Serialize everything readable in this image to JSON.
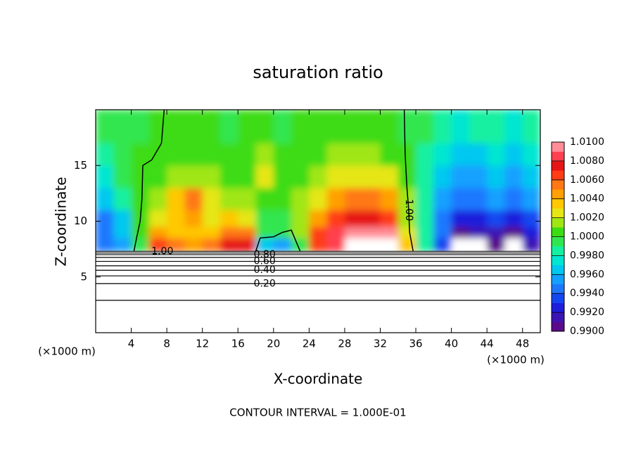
{
  "chart_data": {
    "type": "heatmap",
    "title": "saturation ratio",
    "xlabel": "X-coordinate",
    "ylabel": "Z-coordinate",
    "x_unit_left": "(×1000 m)",
    "x_unit_right": "(×1000 m)",
    "footer": "CONTOUR INTERVAL = 1.000E-01",
    "xlim": [
      0,
      50
    ],
    "ylim": [
      0,
      20
    ],
    "xticks": [
      4,
      8,
      12,
      16,
      20,
      24,
      28,
      32,
      36,
      40,
      44,
      48
    ],
    "yticks": [
      5,
      10,
      15
    ],
    "x_bins": [
      0,
      2,
      4,
      6,
      8,
      10,
      12,
      14,
      16,
      18,
      20,
      22,
      24,
      26,
      28,
      30,
      32,
      34,
      36,
      38,
      40,
      42,
      44,
      46,
      48,
      50
    ],
    "y_bins": [
      7.3,
      8.5,
      9.5,
      11,
      13,
      15,
      17,
      20
    ],
    "z": [
      [
        0.994,
        0.995,
        0.999,
        1.006,
        1.005,
        1.004,
        1.005,
        1.007,
        1.007,
        0.996,
        0.995,
        0.999,
        1.006,
        1.008,
        1.011,
        1.011,
        1.011,
        1.003,
        0.998,
        0.993,
        0.989,
        0.989,
        0.99,
        0.989,
        0.991
      ],
      [
        0.994,
        0.996,
        1.0,
        1.004,
        1.003,
        1.003,
        1.003,
        1.005,
        1.005,
        0.999,
        0.999,
        1.001,
        1.006,
        1.008,
        1.009,
        1.009,
        1.009,
        1.002,
        0.998,
        0.994,
        0.99,
        0.991,
        0.991,
        0.99,
        0.992
      ],
      [
        0.994,
        0.996,
        1.0,
        1.002,
        1.003,
        1.004,
        1.002,
        1.003,
        1.002,
        0.999,
        0.999,
        1.001,
        1.004,
        1.006,
        1.007,
        1.007,
        1.006,
        1.001,
        0.998,
        0.994,
        0.992,
        0.992,
        0.993,
        0.992,
        0.993
      ],
      [
        0.996,
        0.998,
        1.0,
        1.001,
        1.003,
        1.005,
        1.002,
        1.001,
        1.001,
        1.0,
        1.0,
        1.001,
        1.002,
        1.004,
        1.005,
        1.005,
        1.004,
        1.001,
        0.998,
        0.995,
        0.994,
        0.994,
        0.995,
        0.994,
        0.995
      ],
      [
        0.997,
        0.999,
        1.0,
        1.0,
        1.001,
        1.001,
        1.001,
        1.0,
        1.0,
        1.002,
        1.0,
        1.0,
        1.001,
        1.002,
        1.002,
        1.002,
        1.002,
        1.0,
        0.998,
        0.996,
        0.995,
        0.995,
        0.996,
        0.995,
        0.996
      ],
      [
        0.998,
        0.999,
        1.0,
        1.0,
        1.0,
        1.0,
        1.0,
        1.0,
        1.0,
        1.001,
        1.0,
        1.0,
        1.0,
        1.001,
        1.001,
        1.001,
        1.0,
        1.0,
        0.998,
        0.997,
        0.996,
        0.996,
        0.997,
        0.996,
        0.997
      ],
      [
        0.999,
        0.999,
        0.999,
        1.0,
        1.0,
        1.0,
        1.0,
        0.999,
        1.0,
        1.0,
        0.999,
        1.0,
        1.0,
        1.0,
        1.0,
        1.0,
        1.0,
        0.999,
        0.999,
        0.998,
        0.997,
        0.998,
        0.998,
        0.997,
        0.998
      ]
    ],
    "clim": [
      0.99,
      1.01
    ],
    "colorscale": [
      "#5a0a8a",
      "#3c14b4",
      "#1e1edc",
      "#1446f0",
      "#1e78ff",
      "#14a0ff",
      "#00c8f0",
      "#00e6d2",
      "#14f0a0",
      "#32e650",
      "#3cdc14",
      "#a0e614",
      "#e6e614",
      "#ffc800",
      "#ffa000",
      "#ff7814",
      "#ff3c14",
      "#e61414",
      "#ff4050",
      "#ff8c96"
    ],
    "cticks": [
      {
        "value": 0.99,
        "label": "0.9900"
      },
      {
        "value": 0.992,
        "label": "0.9920"
      },
      {
        "value": 0.994,
        "label": "0.9940"
      },
      {
        "value": 0.996,
        "label": "0.9960"
      },
      {
        "value": 0.998,
        "label": "0.9980"
      },
      {
        "value": 1.0,
        "label": "1.0000"
      },
      {
        "value": 1.002,
        "label": "1.0020"
      },
      {
        "value": 1.004,
        "label": "1.0040"
      },
      {
        "value": 1.006,
        "label": "1.0060"
      },
      {
        "value": 1.008,
        "label": "1.0080"
      },
      {
        "value": 1.01,
        "label": "1.0100"
      }
    ],
    "contours": [
      {
        "level": 0.1,
        "z": 2.9
      },
      {
        "level": 0.2,
        "z": 4.4,
        "label": "0.20"
      },
      {
        "level": 0.3,
        "z": 5.1
      },
      {
        "level": 0.4,
        "z": 5.6,
        "label": "0.40"
      },
      {
        "level": 0.5,
        "z": 6.0
      },
      {
        "level": 0.6,
        "z": 6.4,
        "label": "0.60"
      },
      {
        "level": 0.7,
        "z": 6.75
      },
      {
        "level": 0.8,
        "z": 7.0,
        "label": "0.80"
      },
      {
        "level": 0.9,
        "z": 7.15
      },
      {
        "level": 1.0,
        "z": 7.3,
        "label": "1.00"
      }
    ],
    "curves": [
      {
        "level": 1.0,
        "x": [
          7.7,
          7.4,
          6.3,
          5.3,
          5.2,
          5.0,
          4.6,
          4.3
        ],
        "z": [
          20,
          17,
          15.5,
          15,
          12,
          10,
          8.5,
          7.3
        ]
      },
      {
        "level": 1.0,
        "x": [
          34.7,
          34.8,
          35.0,
          35.2,
          35.3,
          35.7
        ],
        "z": [
          20,
          16,
          13,
          11,
          9,
          7.3
        ],
        "label": "1.00"
      },
      {
        "level": 1.0,
        "x": [
          18,
          18.5,
          20,
          21,
          22,
          23
        ],
        "z": [
          7.3,
          8.5,
          8.6,
          9.0,
          9.2,
          7.3
        ]
      }
    ]
  }
}
